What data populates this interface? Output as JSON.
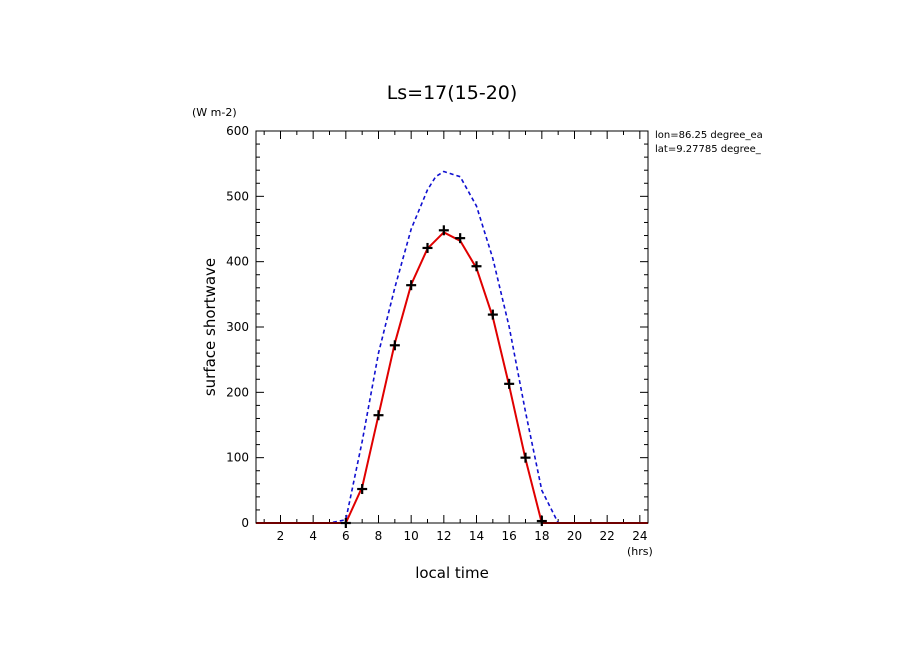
{
  "chart_data": {
    "type": "line",
    "title": "Ls=17(15-20)",
    "xlabel": "local time",
    "ylabel": "surface shortwave",
    "x_unit": "(hrs)",
    "y_unit": "(W m-2)",
    "annotations": [
      "lon=86.25 degree_ea",
      "lat=9.27785 degree_"
    ],
    "xlim": [
      0.5,
      24.5
    ],
    "ylim": [
      0,
      600
    ],
    "x_ticks": [
      2,
      4,
      6,
      8,
      10,
      12,
      14,
      16,
      18,
      20,
      22,
      24
    ],
    "y_ticks": [
      0,
      100,
      200,
      300,
      400,
      500,
      600
    ],
    "grid": false,
    "series": [
      {
        "style": "dashed",
        "color": "#1010d0",
        "x": [
          0.5,
          1,
          2,
          3,
          4,
          5,
          6,
          7,
          8,
          9,
          10,
          11,
          11.5,
          12,
          13,
          14,
          15,
          16,
          17,
          18,
          19,
          20,
          21,
          22,
          23,
          24,
          24.5
        ],
        "y": [
          0,
          0,
          0,
          0,
          0,
          0,
          5,
          125,
          260,
          360,
          450,
          510,
          530,
          538,
          530,
          485,
          405,
          300,
          170,
          50,
          0,
          0,
          0,
          0,
          0,
          0,
          0
        ]
      },
      {
        "style": "solid",
        "color": "#e00000",
        "x": [
          0.5,
          1,
          2,
          3,
          4,
          5,
          6,
          7,
          8,
          9,
          10,
          11,
          12,
          13,
          14,
          15,
          16,
          17,
          18,
          19,
          20,
          21,
          22,
          23,
          24,
          24.5
        ],
        "y": [
          0,
          0,
          0,
          0,
          0,
          0,
          0,
          55,
          165,
          275,
          365,
          420,
          445,
          432,
          390,
          315,
          210,
          98,
          0,
          0,
          0,
          0,
          0,
          0,
          0,
          0
        ]
      },
      {
        "style": "markers",
        "marker": "+",
        "color": "#000000",
        "x": [
          6,
          7,
          8,
          9,
          10,
          11,
          12,
          13,
          14,
          15,
          16,
          17,
          18
        ],
        "y": [
          0,
          52,
          165,
          272,
          364,
          421,
          448,
          436,
          393,
          319,
          213,
          100,
          3
        ]
      }
    ]
  }
}
